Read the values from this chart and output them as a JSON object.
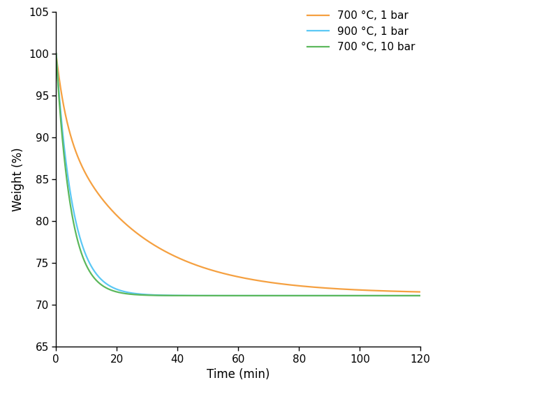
{
  "xlabel": "Time (min)",
  "ylabel": "Weight (%)",
  "xlim": [
    0,
    120
  ],
  "ylim": [
    65,
    105
  ],
  "yticks": [
    65,
    70,
    75,
    80,
    85,
    90,
    95,
    100,
    105
  ],
  "xticks": [
    0,
    20,
    40,
    60,
    80,
    100,
    120
  ],
  "legend": [
    {
      "label": "700 °C, 1 bar",
      "color": "#F5A040"
    },
    {
      "label": "900 °C, 1 bar",
      "color": "#5BC8F5"
    },
    {
      "label": "700 °C, 10 bar",
      "color": "#5CB85C"
    }
  ],
  "background_color": "#ffffff",
  "final_weight": 71.1,
  "final_weight_orange": 71.35,
  "tau_slow": 26.0,
  "tau_fast_blue": 5.5,
  "tau_fast_green": 4.8,
  "line_width": 1.6
}
